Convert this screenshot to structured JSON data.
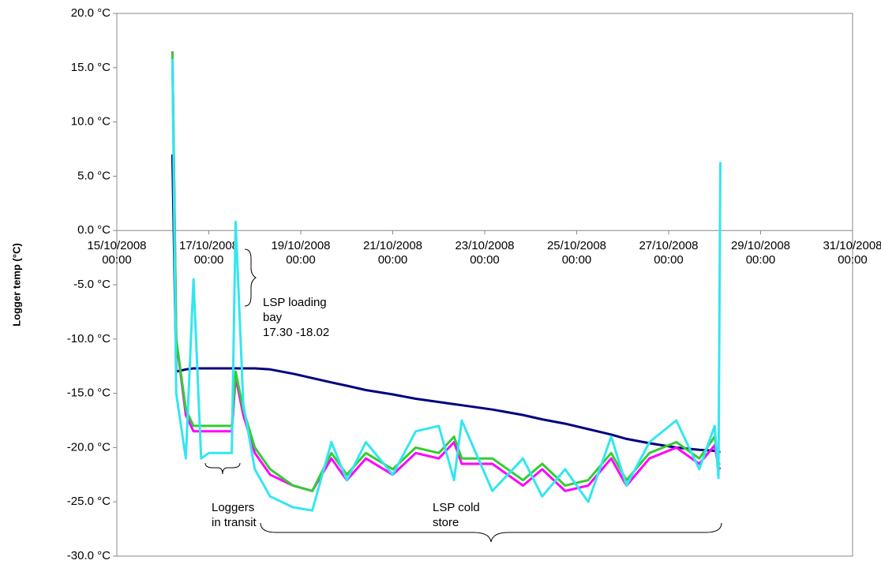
{
  "chart_data": {
    "type": "line",
    "y_label": "Logger temp (°C)",
    "xlim": [
      "15/10/2008 00:00",
      "31/10/2008 00:00"
    ],
    "xticks": [
      "15/10/2008 00:00",
      "17/10/2008 00:00",
      "19/10/2008 00:00",
      "21/10/2008 00:00",
      "23/10/2008 00:00",
      "25/10/2008 00:00",
      "27/10/2008 00:00",
      "29/10/2008 00:00",
      "31/10/2008 00:00"
    ],
    "ylim": [
      -30,
      20
    ],
    "yticks": [
      {
        "value": 20,
        "label": "20.0 °C"
      },
      {
        "value": 15,
        "label": "15.0 °C"
      },
      {
        "value": 10,
        "label": "10.0 °C"
      },
      {
        "value": 5,
        "label": "5.0 °C"
      },
      {
        "value": 0,
        "label": "0.0 °C"
      },
      {
        "value": -5,
        "label": "-5.0 °C"
      },
      {
        "value": -10,
        "label": "-10.0 °C"
      },
      {
        "value": -15,
        "label": "-15.0 °C"
      },
      {
        "value": -20,
        "label": "-20.0 °C"
      },
      {
        "value": -25,
        "label": "-25.0 °C"
      },
      {
        "value": -30,
        "label": "-30.0 °C"
      }
    ],
    "x": [
      "16/10/2008 05:00",
      "16/10/2008 07:00",
      "16/10/2008 12:00",
      "16/10/2008 16:00",
      "16/10/2008 20:00",
      "17/10/2008 00:00",
      "17/10/2008 12:00",
      "17/10/2008 14:00",
      "17/10/2008 18:00",
      "18/10/2008 00:00",
      "18/10/2008 08:00",
      "18/10/2008 20:00",
      "19/10/2008 06:00",
      "19/10/2008 16:00",
      "20/10/2008 00:00",
      "20/10/2008 10:00",
      "21/10/2008 00:00",
      "21/10/2008 12:00",
      "22/10/2008 00:00",
      "22/10/2008 08:00",
      "22/10/2008 12:00",
      "23/10/2008 04:00",
      "23/10/2008 20:00",
      "24/10/2008 06:00",
      "24/10/2008 18:00",
      "25/10/2008 06:00",
      "25/10/2008 18:00",
      "26/10/2008 02:00",
      "26/10/2008 14:00",
      "27/10/2008 04:00",
      "27/10/2008 16:00",
      "28/10/2008 00:00",
      "28/10/2008 02:00",
      "28/10/2008 03:00"
    ],
    "series": [
      {
        "color": "#000080",
        "values": [
          7,
          -13,
          -12.8,
          -12.7,
          -12.7,
          -12.7,
          -12.7,
          -12.7,
          -12.7,
          -12.7,
          -12.8,
          -13.2,
          -13.6,
          -14,
          -14.3,
          -14.7,
          -15.1,
          -15.5,
          -15.8,
          -16,
          -16.1,
          -16.5,
          -17,
          -17.4,
          -17.8,
          -18.3,
          -18.8,
          -19.2,
          -19.6,
          -20,
          -20.2,
          -20.3,
          -20.4,
          -20.4
        ]
      },
      {
        "color": "#ff00ff",
        "values": [
          16.5,
          -10,
          -17,
          -18.5,
          -18.5,
          -18.5,
          -18.5,
          -13.5,
          -17,
          -20.5,
          -22.5,
          -23.5,
          -24,
          -21,
          -23,
          -21,
          -22.5,
          -20.5,
          -21,
          -19.5,
          -21.5,
          -21.5,
          -23.5,
          -22,
          -24,
          -23.5,
          -21,
          -23.5,
          -21,
          -20,
          -21.5,
          -19.8,
          -21.8,
          -22
        ]
      },
      {
        "color": "#33cc33",
        "values": [
          16.5,
          -10,
          -16.5,
          -18,
          -18,
          -18,
          -18,
          -13,
          -16.5,
          -20,
          -22,
          -23.5,
          -24,
          -20.5,
          -22.5,
          -20.5,
          -22,
          -20,
          -20.5,
          -19,
          -21,
          -21,
          -23,
          -21.5,
          -23.5,
          -23,
          -20.5,
          -23,
          -20.5,
          -19.5,
          -21,
          -19,
          -21.5,
          -21.5
        ]
      },
      {
        "color": "#33e6f0",
        "values": [
          15.8,
          -15,
          -21,
          -4.5,
          -21,
          -20.5,
          -20.5,
          0.8,
          -16,
          -22,
          -24.5,
          -25.5,
          -25.8,
          -19.5,
          -23,
          -19.5,
          -22.5,
          -18.5,
          -18,
          -23,
          -17.5,
          -24,
          -21,
          -24.5,
          -22,
          -25,
          -19,
          -23.5,
          -19.5,
          -17.5,
          -22,
          -18,
          -22.8,
          6.3
        ]
      }
    ],
    "annotations": [
      {
        "text": [
          "LSP loading",
          "bay",
          "17.30 -18.02"
        ]
      },
      {
        "text": [
          "Loggers",
          "in transit"
        ]
      },
      {
        "text": [
          "LSP cold",
          "store"
        ]
      }
    ]
  }
}
